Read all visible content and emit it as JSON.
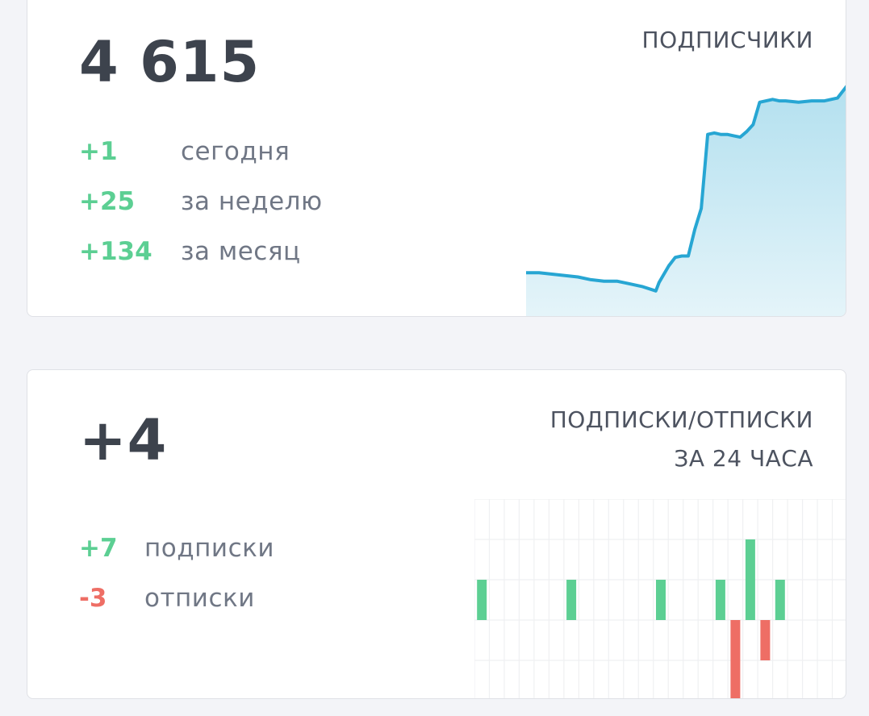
{
  "subscribers_card": {
    "total": "4 615",
    "title": "ПОДПИСЧИКИ",
    "stats": [
      {
        "value": "+1",
        "label": "сегодня"
      },
      {
        "value": "+25",
        "label": "за неделю"
      },
      {
        "value": "+134",
        "label": "за месяц"
      }
    ]
  },
  "changes_card": {
    "total": "+4",
    "title_line1": "ПОДПИСКИ/ОТПИСКИ",
    "title_line2": "ЗА 24 ЧАСА",
    "stats": [
      {
        "value": "+7",
        "label": "подписки"
      },
      {
        "value": "-3",
        "label": "отписки"
      }
    ]
  },
  "colors": {
    "positive": "#5ccf93",
    "negative": "#ee6e65",
    "line": "#27a6d3",
    "area": "#b3e0ef",
    "text_dark": "#3d434d",
    "text_muted": "#707785"
  },
  "chart_data": [
    {
      "type": "area",
      "x": [
        0,
        4,
        8,
        12,
        16,
        20,
        24,
        28,
        32,
        36,
        40,
        41,
        42,
        44,
        46,
        48,
        50,
        52,
        54,
        56,
        58,
        60,
        62,
        64,
        66,
        68,
        70,
        72,
        74,
        76,
        78,
        80,
        84,
        88,
        92,
        96,
        99
      ],
      "y": [
        4481,
        4481,
        4480,
        4479,
        4478,
        4476,
        4475,
        4475,
        4473,
        4471,
        4468,
        4474,
        4478,
        4486,
        4492,
        4493,
        4493,
        4512,
        4527,
        4580,
        4581,
        4580,
        4580,
        4579,
        4578,
        4582,
        4587,
        4603,
        4604,
        4605,
        4604,
        4604,
        4603,
        4604,
        4604,
        4606,
        4615
      ],
      "ylim": [
        4450,
        4630
      ]
    },
    {
      "type": "bar",
      "x": [
        0,
        1,
        2,
        3,
        4,
        5,
        6,
        7,
        8,
        9,
        10,
        11,
        12,
        13,
        14,
        15,
        16,
        17,
        18,
        19,
        20,
        21,
        22,
        23,
        24
      ],
      "series": [
        {
          "values": [
            1,
            0,
            0,
            0,
            0,
            0,
            1,
            0,
            0,
            0,
            0,
            0,
            1,
            0,
            0,
            0,
            1,
            0,
            2,
            0,
            1,
            0,
            0,
            0,
            0
          ],
          "color": "#5ccf93"
        },
        {
          "values": [
            0,
            0,
            0,
            0,
            0,
            0,
            0,
            0,
            0,
            0,
            0,
            0,
            0,
            0,
            0,
            0,
            0,
            -2,
            0,
            -1,
            0,
            0,
            0,
            0,
            0
          ],
          "color": "#ee6e65"
        }
      ],
      "ylim": [
        -2,
        3
      ],
      "grid": true
    }
  ]
}
